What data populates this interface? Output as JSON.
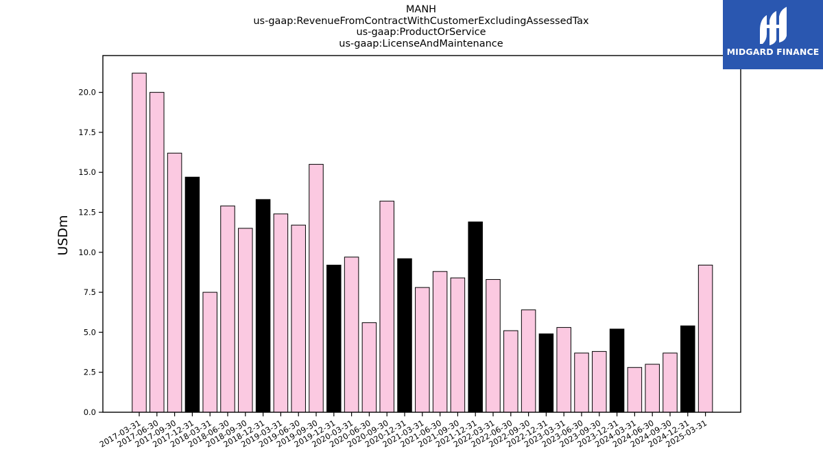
{
  "titles": [
    "MANH",
    "us-gaap:RevenueFromContractWithCustomerExcludingAssessedTax",
    "us-gaap:ProductOrService",
    "us-gaap:LicenseAndMaintenance"
  ],
  "logo": {
    "text": "MIDGARD FINANCE",
    "background": "#2a57b0"
  },
  "chart_data": {
    "type": "bar",
    "title": "MANH",
    "ylabel": "USDm",
    "xlabel": "",
    "ylim": [
      0,
      22.3
    ],
    "yticks": [
      "0.0",
      "2.5",
      "5.0",
      "7.5",
      "10.0",
      "12.5",
      "15.0",
      "17.5",
      "20.0"
    ],
    "grid": false,
    "colors": {
      "quarter": "#fbc9e1",
      "year_end": "#000000",
      "edge": "#000000"
    },
    "categories": [
      "2017-03-31",
      "2017-06-30",
      "2017-09-30",
      "2017-12-31",
      "2018-03-31",
      "2018-06-30",
      "2018-09-30",
      "2018-12-31",
      "2019-03-31",
      "2019-06-30",
      "2019-09-30",
      "2019-12-31",
      "2020-03-31",
      "2020-06-30",
      "2020-09-30",
      "2020-12-31",
      "2021-03-31",
      "2021-06-30",
      "2021-09-30",
      "2021-12-31",
      "2022-03-31",
      "2022-06-30",
      "2022-09-30",
      "2022-12-31",
      "2023-03-31",
      "2023-06-30",
      "2023-09-30",
      "2023-12-31",
      "2024-03-31",
      "2024-06-30",
      "2024-09-30",
      "2024-12-31",
      "2025-03-31"
    ],
    "values": [
      21.2,
      20.0,
      16.2,
      14.7,
      7.5,
      12.9,
      11.5,
      13.3,
      12.4,
      11.7,
      15.5,
      9.2,
      9.7,
      5.6,
      13.2,
      9.6,
      7.8,
      8.8,
      8.4,
      11.9,
      8.3,
      5.1,
      6.4,
      4.9,
      5.3,
      3.7,
      3.8,
      5.2,
      2.8,
      3.0,
      3.7,
      5.4,
      9.2
    ]
  }
}
